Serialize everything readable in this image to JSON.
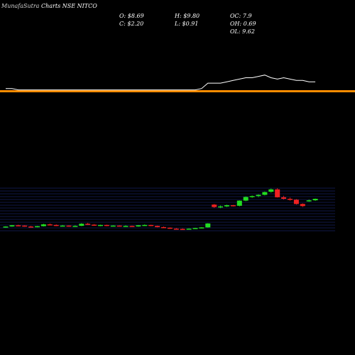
{
  "header": {
    "brand": "MunafaSutra",
    "title": "Charts NSE NITCO"
  },
  "stats": {
    "open": "O: $8.69",
    "high": "H: $9.80",
    "oc": "OC: 7.9",
    "close": "C: $2.20",
    "low": "L: $0.91",
    "oh": "OH: 0.69",
    "ol": "OL: 9.62"
  },
  "colors": {
    "background": "#000000",
    "up": "#22dd22",
    "down": "#ee2222",
    "line": "#ffffff",
    "avg_band": "#ff8c00",
    "grid": "#1f2f8f"
  },
  "chart_data": {
    "type": "candlestick",
    "x": [
      1,
      2,
      3,
      4,
      5,
      6,
      7,
      8,
      9,
      10,
      11,
      12,
      13,
      14,
      15,
      16,
      17,
      18,
      19,
      20,
      21,
      22,
      23,
      24,
      25,
      26,
      27,
      28,
      29,
      30,
      31,
      32,
      33,
      34,
      35,
      36,
      37,
      38,
      39,
      40,
      41,
      42,
      43,
      44,
      45,
      46,
      47,
      48,
      49,
      50
    ],
    "candles": [
      [
        1.2,
        1.5,
        1.0,
        1.4
      ],
      [
        1.4,
        1.9,
        1.3,
        1.8
      ],
      [
        1.8,
        2.0,
        1.5,
        1.7
      ],
      [
        1.7,
        1.8,
        1.3,
        1.4
      ],
      [
        1.4,
        1.6,
        1.1,
        1.2
      ],
      [
        1.2,
        1.6,
        1.1,
        1.5
      ],
      [
        1.5,
        2.3,
        1.4,
        2.1
      ],
      [
        2.1,
        2.4,
        1.8,
        1.9
      ],
      [
        1.9,
        2.1,
        1.5,
        1.6
      ],
      [
        1.6,
        1.9,
        1.4,
        1.7
      ],
      [
        1.7,
        1.8,
        1.3,
        1.4
      ],
      [
        1.4,
        1.8,
        1.3,
        1.6
      ],
      [
        1.6,
        2.5,
        1.5,
        2.3
      ],
      [
        2.3,
        2.6,
        1.9,
        2.0
      ],
      [
        2.0,
        2.2,
        1.6,
        1.7
      ],
      [
        1.7,
        2.0,
        1.5,
        1.9
      ],
      [
        1.9,
        2.0,
        1.5,
        1.6
      ],
      [
        1.6,
        1.8,
        1.4,
        1.7
      ],
      [
        1.7,
        1.8,
        1.4,
        1.5
      ],
      [
        1.5,
        1.8,
        1.3,
        1.6
      ],
      [
        1.6,
        1.7,
        1.3,
        1.4
      ],
      [
        1.4,
        1.9,
        1.3,
        1.8
      ],
      [
        1.8,
        2.1,
        1.6,
        1.9
      ],
      [
        1.9,
        2.0,
        1.5,
        1.6
      ],
      [
        1.6,
        1.7,
        1.1,
        1.2
      ],
      [
        1.2,
        1.4,
        0.9,
        1.0
      ],
      [
        1.0,
        1.1,
        0.6,
        0.7
      ],
      [
        0.7,
        0.9,
        0.5,
        0.6
      ],
      [
        0.6,
        0.8,
        0.4,
        0.5
      ],
      [
        0.5,
        0.8,
        0.4,
        0.7
      ],
      [
        0.7,
        1.0,
        0.6,
        0.9
      ],
      [
        0.9,
        1.2,
        0.8,
        1.1
      ],
      [
        1.1,
        2.5,
        1.0,
        2.4
      ],
      [
        8.6,
        8.8,
        7.5,
        7.8
      ],
      [
        7.8,
        8.3,
        7.4,
        8.0
      ],
      [
        8.0,
        8.6,
        7.8,
        8.4
      ],
      [
        8.4,
        8.5,
        8.0,
        8.2
      ],
      [
        8.2,
        10.0,
        8.0,
        9.9
      ],
      [
        9.9,
        11.3,
        9.7,
        11.1
      ],
      [
        11.1,
        11.6,
        10.8,
        11.4
      ],
      [
        11.4,
        12.0,
        11.0,
        11.8
      ],
      [
        11.8,
        12.9,
        11.6,
        12.7
      ],
      [
        12.8,
        13.9,
        12.5,
        13.6
      ],
      [
        13.6,
        14.0,
        10.9,
        11.0
      ],
      [
        11.0,
        11.5,
        10.2,
        10.5
      ],
      [
        10.5,
        10.9,
        9.9,
        10.2
      ],
      [
        10.2,
        10.4,
        8.6,
        8.8
      ],
      [
        8.8,
        9.0,
        7.8,
        8.1
      ],
      [
        9.8,
        10.3,
        9.5,
        10.0
      ],
      [
        10.0,
        10.6,
        9.8,
        10.5
      ]
    ],
    "line_y": [
      62,
      62,
      61,
      61,
      61,
      61,
      61,
      61,
      61,
      61,
      61,
      61,
      61,
      61,
      61,
      61,
      61,
      61,
      61,
      61,
      61,
      61,
      61,
      61,
      61,
      61,
      61,
      61,
      61,
      61,
      61,
      62,
      66,
      66,
      66,
      67,
      68,
      69,
      70,
      70,
      71,
      72,
      70,
      69,
      70,
      69,
      68,
      68,
      67,
      67
    ],
    "avg_y": 60,
    "grid": true
  }
}
